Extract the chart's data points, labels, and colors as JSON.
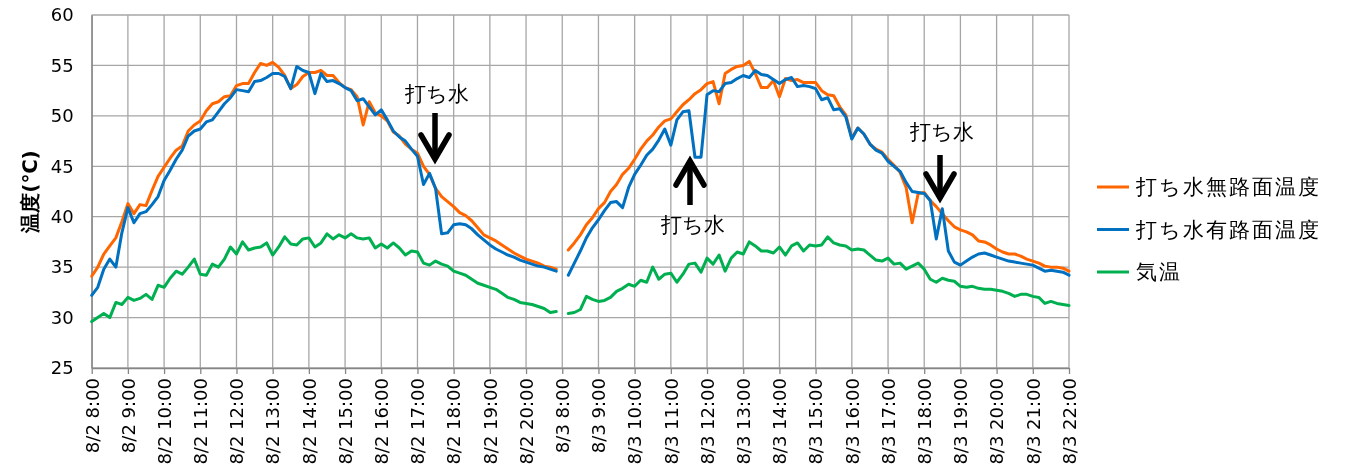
{
  "chart_data": {
    "type": "line",
    "ylabel": "温度(℃)",
    "categories": [
      "8/2 8:00",
      null,
      null,
      null,
      null,
      null,
      "8/2 9:00",
      null,
      null,
      null,
      null,
      null,
      "8/2 10:00",
      null,
      null,
      null,
      null,
      null,
      "8/2 11:00",
      null,
      null,
      null,
      null,
      null,
      "8/2 12:00",
      null,
      null,
      null,
      null,
      null,
      "8/2 13:00",
      null,
      null,
      null,
      null,
      null,
      "8/2 14:00",
      null,
      null,
      null,
      null,
      null,
      "8/2 15:00",
      null,
      null,
      null,
      null,
      null,
      "8/2 16:00",
      null,
      null,
      null,
      null,
      null,
      "8/2 17:00",
      null,
      null,
      null,
      null,
      null,
      "8/2 18:00",
      null,
      null,
      null,
      null,
      null,
      "8/2 19:00",
      null,
      null,
      null,
      null,
      null,
      "8/2 20:00",
      null,
      null,
      null,
      null,
      null,
      "8/3 8:00",
      null,
      null,
      null,
      null,
      null,
      "8/3 9:00",
      null,
      null,
      null,
      null,
      null,
      "8/3 10:00",
      null,
      null,
      null,
      null,
      null,
      "8/3 11:00",
      null,
      null,
      null,
      null,
      null,
      "8/3 12:00",
      null,
      null,
      null,
      null,
      null,
      "8/3 13:00",
      null,
      null,
      null,
      null,
      null,
      "8/3 14:00",
      null,
      null,
      null,
      null,
      null,
      "8/3 15:00",
      null,
      null,
      null,
      null,
      null,
      "8/3 16:00",
      null,
      null,
      null,
      null,
      null,
      "8/3 17:00",
      null,
      null,
      null,
      null,
      null,
      "8/3 18:00",
      null,
      null,
      null,
      null,
      null,
      "8/3 19:00",
      null,
      null,
      null,
      null,
      null,
      "8/3 20:00",
      null,
      null,
      null,
      null,
      null,
      "8/3 21:00",
      null,
      null,
      null,
      null,
      null,
      "8/3 22:00"
    ],
    "series": [
      {
        "name": "打ち水無路面温度",
        "color": "#ff6600",
        "values": [
          34.1,
          35.0,
          36.3,
          37.1,
          37.9,
          39.5,
          41.3,
          40.3,
          41.2,
          41.1,
          42.6,
          44.0,
          44.9,
          45.8,
          46.6,
          47.0,
          48.5,
          49.1,
          49.5,
          50.5,
          51.2,
          51.4,
          51.9,
          52.0,
          53.0,
          53.2,
          53.2,
          54.3,
          55.2,
          55.0,
          55.3,
          54.8,
          54.0,
          52.7,
          53.1,
          53.9,
          54.3,
          54.3,
          54.5,
          54.0,
          54.0,
          53.3,
          52.8,
          52.6,
          51.9,
          49.1,
          51.4,
          50.3,
          50.0,
          49.5,
          48.4,
          48.0,
          47.2,
          46.7,
          46.3,
          45.0,
          44.2,
          42.8,
          42.0,
          41.5,
          41.0,
          40.4,
          40.1,
          39.6,
          38.9,
          38.2,
          37.9,
          37.6,
          37.2,
          36.8,
          36.4,
          36.1,
          35.8,
          35.6,
          35.4,
          35.1,
          35.0,
          34.8,
          null,
          36.7,
          37.4,
          38.2,
          39.2,
          39.9,
          40.8,
          41.4,
          42.5,
          43.2,
          44.2,
          44.8,
          45.7,
          46.7,
          47.5,
          48.1,
          48.9,
          49.5,
          49.7,
          50.4,
          51.1,
          51.6,
          52.2,
          52.6,
          53.2,
          53.4,
          51.2,
          54.2,
          54.6,
          54.9,
          55.0,
          55.4,
          54.2,
          52.8,
          52.8,
          53.5,
          51.9,
          53.7,
          53.5,
          53.6,
          53.3,
          53.3,
          53.3,
          52.5,
          52.1,
          52.0,
          50.9,
          50.1,
          47.8,
          48.8,
          48.2,
          47.2,
          46.7,
          46.4,
          45.7,
          45.1,
          44.4,
          42.9,
          39.4,
          42.3,
          42.4,
          41.6,
          41.0,
          40.3,
          39.6,
          39.0,
          38.7,
          38.5,
          38.2,
          37.6,
          37.5,
          37.2,
          36.8,
          36.5,
          36.3,
          36.3,
          36.1,
          35.8,
          35.6,
          35.4,
          35.1,
          35.0,
          35.0,
          34.9,
          34.6
        ]
      },
      {
        "name": "打ち水有路面温度",
        "color": "#0070c0",
        "values": [
          32.2,
          33.0,
          34.8,
          35.8,
          35.0,
          38.4,
          40.9,
          39.4,
          40.3,
          40.5,
          41.2,
          42.0,
          43.6,
          44.6,
          45.7,
          46.6,
          48.0,
          48.5,
          48.7,
          49.4,
          49.6,
          50.4,
          51.2,
          51.8,
          52.6,
          52.5,
          52.4,
          53.4,
          53.5,
          53.8,
          54.2,
          54.2,
          53.9,
          52.7,
          54.9,
          54.5,
          54.3,
          52.2,
          54.2,
          53.4,
          53.5,
          53.2,
          52.8,
          52.5,
          51.5,
          51.7,
          50.9,
          50.1,
          50.6,
          49.6,
          48.5,
          47.9,
          47.5,
          46.7,
          46.0,
          43.2,
          44.3,
          42.8,
          38.3,
          38.4,
          39.2,
          39.3,
          39.2,
          38.8,
          38.2,
          37.7,
          37.2,
          36.8,
          36.5,
          36.2,
          36.0,
          35.7,
          35.5,
          35.3,
          35.1,
          35.0,
          34.8,
          34.6,
          null,
          34.2,
          35.4,
          36.6,
          37.9,
          38.9,
          39.7,
          40.6,
          41.4,
          41.5,
          40.9,
          42.9,
          44.2,
          45.1,
          46.1,
          46.7,
          47.6,
          48.7,
          47.1,
          49.6,
          50.4,
          50.5,
          45.9,
          45.9,
          52.1,
          52.5,
          52.4,
          53.2,
          53.3,
          53.7,
          54.0,
          53.8,
          54.5,
          54.1,
          54.0,
          53.6,
          53.2,
          53.6,
          53.8,
          52.9,
          53.0,
          52.9,
          52.7,
          51.6,
          51.8,
          50.6,
          50.7,
          49.9,
          47.7,
          48.8,
          48.2,
          47.2,
          46.6,
          46.3,
          45.5,
          45.0,
          44.5,
          43.4,
          42.5,
          42.4,
          42.3,
          41.6,
          37.8,
          40.8,
          36.6,
          35.5,
          35.2,
          35.6,
          36.0,
          36.3,
          36.4,
          36.2,
          36.0,
          35.8,
          35.6,
          35.5,
          35.4,
          35.3,
          35.2,
          34.9,
          34.6,
          34.7,
          34.6,
          34.5,
          34.2
        ]
      },
      {
        "name": "気温",
        "color": "#00b050",
        "values": [
          29.6,
          30.0,
          30.4,
          30.0,
          31.5,
          31.3,
          32.0,
          31.7,
          31.9,
          32.3,
          31.8,
          33.2,
          33.0,
          33.9,
          34.6,
          34.3,
          35.0,
          35.8,
          34.3,
          34.2,
          35.3,
          35.0,
          35.8,
          37.0,
          36.3,
          37.5,
          36.7,
          36.9,
          37.0,
          37.4,
          36.2,
          37.0,
          38.0,
          37.3,
          37.2,
          37.8,
          37.9,
          37.0,
          37.4,
          38.3,
          37.8,
          38.2,
          37.9,
          38.3,
          37.9,
          37.8,
          37.9,
          36.9,
          37.3,
          36.9,
          37.4,
          36.9,
          36.2,
          36.6,
          36.5,
          35.4,
          35.2,
          35.6,
          35.3,
          35.1,
          34.6,
          34.4,
          34.2,
          33.8,
          33.4,
          33.2,
          33.0,
          32.8,
          32.4,
          32.0,
          31.8,
          31.5,
          31.4,
          31.3,
          31.1,
          30.9,
          30.5,
          30.6,
          null,
          30.4,
          30.5,
          30.8,
          32.1,
          31.8,
          31.6,
          31.7,
          32.0,
          32.6,
          32.9,
          33.3,
          33.1,
          33.7,
          33.5,
          35.0,
          33.8,
          34.3,
          34.4,
          33.5,
          34.3,
          35.3,
          35.4,
          34.5,
          35.9,
          35.3,
          36.2,
          34.6,
          35.9,
          36.5,
          36.3,
          37.5,
          37.1,
          36.6,
          36.6,
          36.4,
          37.0,
          36.2,
          37.1,
          37.4,
          36.6,
          37.2,
          37.1,
          37.2,
          38.0,
          37.4,
          37.2,
          37.1,
          36.7,
          36.8,
          36.7,
          36.2,
          35.7,
          35.6,
          35.9,
          35.3,
          35.4,
          34.8,
          35.1,
          35.4,
          34.8,
          33.8,
          33.5,
          33.9,
          33.7,
          33.6,
          33.1,
          33.0,
          33.1,
          32.9,
          32.8,
          32.8,
          32.7,
          32.6,
          32.4,
          32.1,
          32.3,
          32.3,
          32.1,
          32.0,
          31.4,
          31.6,
          31.4,
          31.3,
          31.2
        ]
      }
    ],
    "ylim": [
      25,
      60
    ],
    "yticks": [
      25,
      30,
      35,
      40,
      45,
      50,
      55,
      60
    ],
    "grid": true,
    "legend": "right",
    "annotations": [
      "打ち水",
      "打ち水",
      "打ち水"
    ]
  }
}
